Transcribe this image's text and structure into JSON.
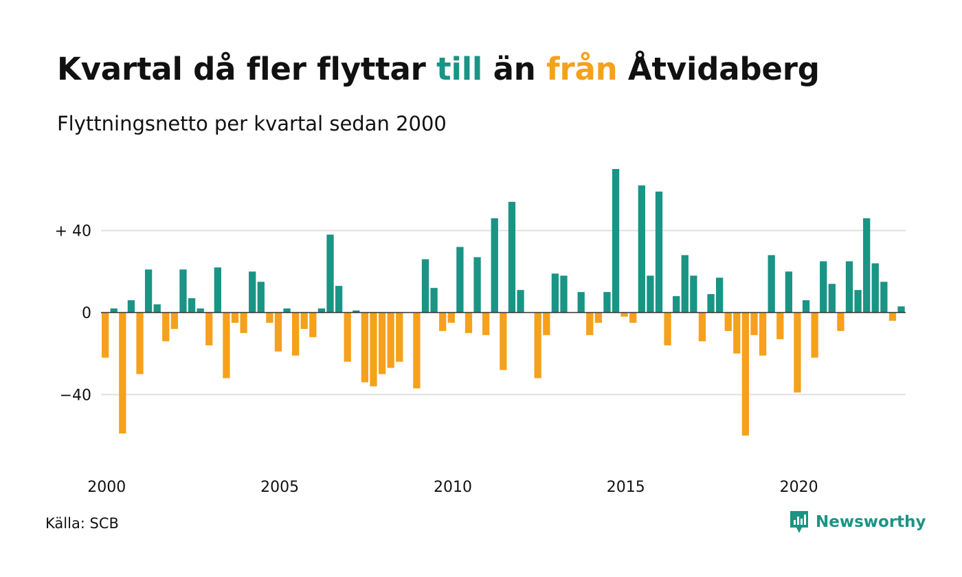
{
  "header": {
    "title_parts": [
      {
        "text": "Kvartal då fler flyttar ",
        "tone": "normal"
      },
      {
        "text": "till",
        "tone": "pos"
      },
      {
        "text": " än ",
        "tone": "normal"
      },
      {
        "text": "från",
        "tone": "neg"
      },
      {
        "text": " Åtvidaberg",
        "tone": "normal"
      }
    ],
    "subtitle": "Flyttningsnetto per kvartal sedan 2000"
  },
  "footer": {
    "source": "Källa: SCB",
    "brand": "Newsworthy",
    "brand_icon": "newsworthy-logo-icon"
  },
  "colors": {
    "positive": "#1a9484",
    "negative": "#f5a11c",
    "grid": "#e0e0e0",
    "zero_line": "#333333",
    "text": "#111111"
  },
  "chart_data": {
    "type": "bar",
    "title": "Kvartal då fler flyttar till än från Åtvidaberg",
    "subtitle": "Flyttningsnetto per kvartal sedan 2000",
    "xlabel": "",
    "ylabel": "",
    "ylim": [
      -65,
      70
    ],
    "grid": true,
    "y_ticks": [
      {
        "value": 40,
        "label": "+ 40"
      },
      {
        "value": 0,
        "label": "0"
      },
      {
        "value": -40,
        "label": "−40"
      }
    ],
    "x_ticks": [
      {
        "year": 2000,
        "label": "2000"
      },
      {
        "year": 2005,
        "label": "2005"
      },
      {
        "year": 2010,
        "label": "2010"
      },
      {
        "year": 2015,
        "label": "2015"
      },
      {
        "year": 2020,
        "label": "2020"
      }
    ],
    "start_year": 2000,
    "start_quarter": 1,
    "values": [
      -22,
      2,
      -59,
      6,
      -30,
      21,
      4,
      -14,
      -8,
      21,
      7,
      2,
      -16,
      22,
      -32,
      -5,
      -10,
      20,
      15,
      -5,
      -19,
      2,
      -21,
      -8,
      -12,
      2,
      38,
      13,
      -24,
      1,
      -34,
      -36,
      -30,
      -27,
      -24,
      0,
      -37,
      26,
      12,
      -9,
      -5,
      32,
      -10,
      27,
      -11,
      46,
      -28,
      54,
      11,
      0,
      -32,
      -11,
      19,
      18,
      0,
      10,
      -11,
      -5,
      10,
      70,
      -2,
      -5,
      62,
      18,
      59,
      -16,
      8,
      28,
      18,
      -14,
      9,
      17,
      -9,
      -20,
      -60,
      -11,
      -21,
      28,
      -13,
      20,
      -39,
      6,
      -22,
      25,
      14,
      -9,
      25,
      11,
      46,
      24,
      15,
      -4,
      3
    ]
  }
}
